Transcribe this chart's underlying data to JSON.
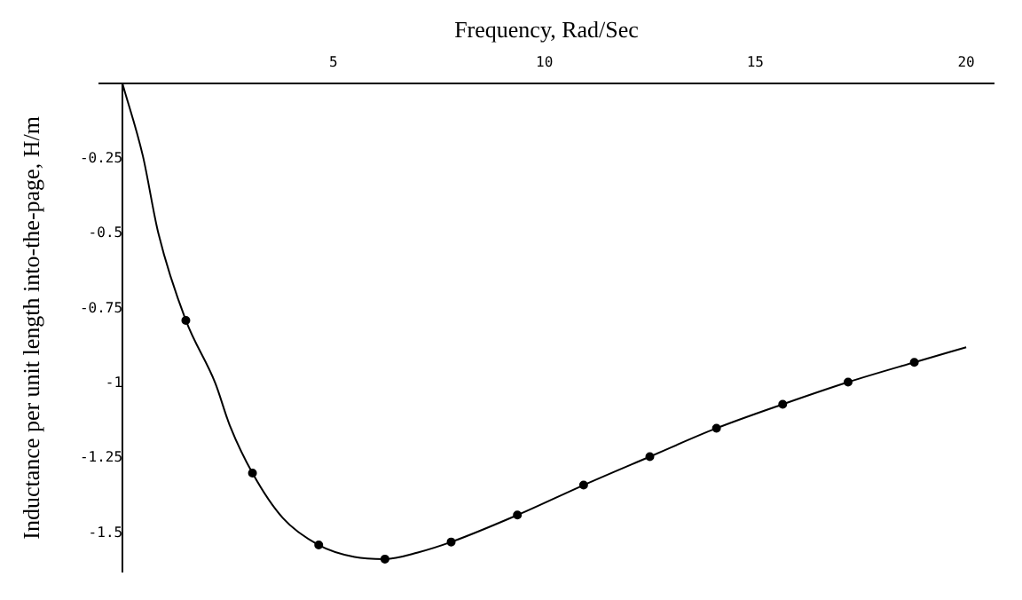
{
  "chart_data": {
    "type": "line",
    "xlabel": "Frequency, Rad/Sec",
    "ylabel": "Inductance per unit length into-the-page, H/m",
    "xlim": [
      -0.55,
      20.65
    ],
    "ylim": [
      -1.63,
      0
    ],
    "xticks": [
      5,
      10,
      15,
      20
    ],
    "yticks": [
      -1.5,
      -1.25,
      -1,
      -0.75,
      -0.5,
      -0.25
    ],
    "grid": false,
    "legend": false,
    "series": [
      {
        "type": "line",
        "color": "#000000",
        "marker": "none",
        "x": [
          0,
          0.48,
          0.85,
          1.5,
          2.2,
          2.54,
          3.08,
          3.8,
          4.65,
          5.5,
          6.22,
          7.0,
          7.79,
          9.36,
          10.93,
          12.5,
          14.08,
          15.65,
          17.2,
          18.77,
          20
        ],
        "values": [
          0,
          -0.24,
          -0.5,
          -0.79,
          -1.0,
          -1.14,
          -1.3,
          -1.45,
          -1.54,
          -1.58,
          -1.587,
          -1.565,
          -1.53,
          -1.44,
          -1.34,
          -1.245,
          -1.15,
          -1.07,
          -0.996,
          -0.93,
          -0.88
        ]
      },
      {
        "type": "scatter",
        "color": "#000000",
        "marker": "circle",
        "x": [
          1.5,
          3.08,
          4.65,
          6.22,
          7.79,
          9.36,
          10.93,
          12.5,
          14.08,
          15.65,
          17.2,
          18.77
        ],
        "values": [
          -0.79,
          -1.3,
          -1.54,
          -1.587,
          -1.53,
          -1.44,
          -1.34,
          -1.245,
          -1.15,
          -1.07,
          -0.996,
          -0.93
        ]
      }
    ]
  }
}
